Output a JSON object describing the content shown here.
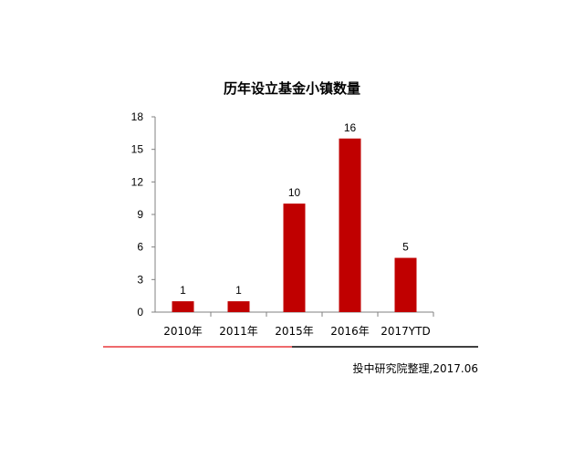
{
  "chart_data": {
    "type": "bar",
    "title": "历年设立基金小镇数量",
    "categories": [
      "2010年",
      "2011年",
      "2015年",
      "2016年",
      "2017YTD"
    ],
    "values": [
      1,
      1,
      10,
      16,
      5
    ],
    "data_labels": [
      "1",
      "1",
      "10",
      "16",
      "5"
    ],
    "xlabel": "",
    "ylabel": "",
    "ylim": [
      0,
      18
    ],
    "yticks": [
      "0",
      "3",
      "6",
      "9",
      "12",
      "15",
      "18"
    ],
    "grid": false,
    "legend": "none"
  },
  "colors": {
    "bar": "#c00000",
    "axis": "#808080",
    "divider_left": "#e8383d",
    "divider_right": "#000000"
  },
  "source": "投中研究院整理,2017.06"
}
